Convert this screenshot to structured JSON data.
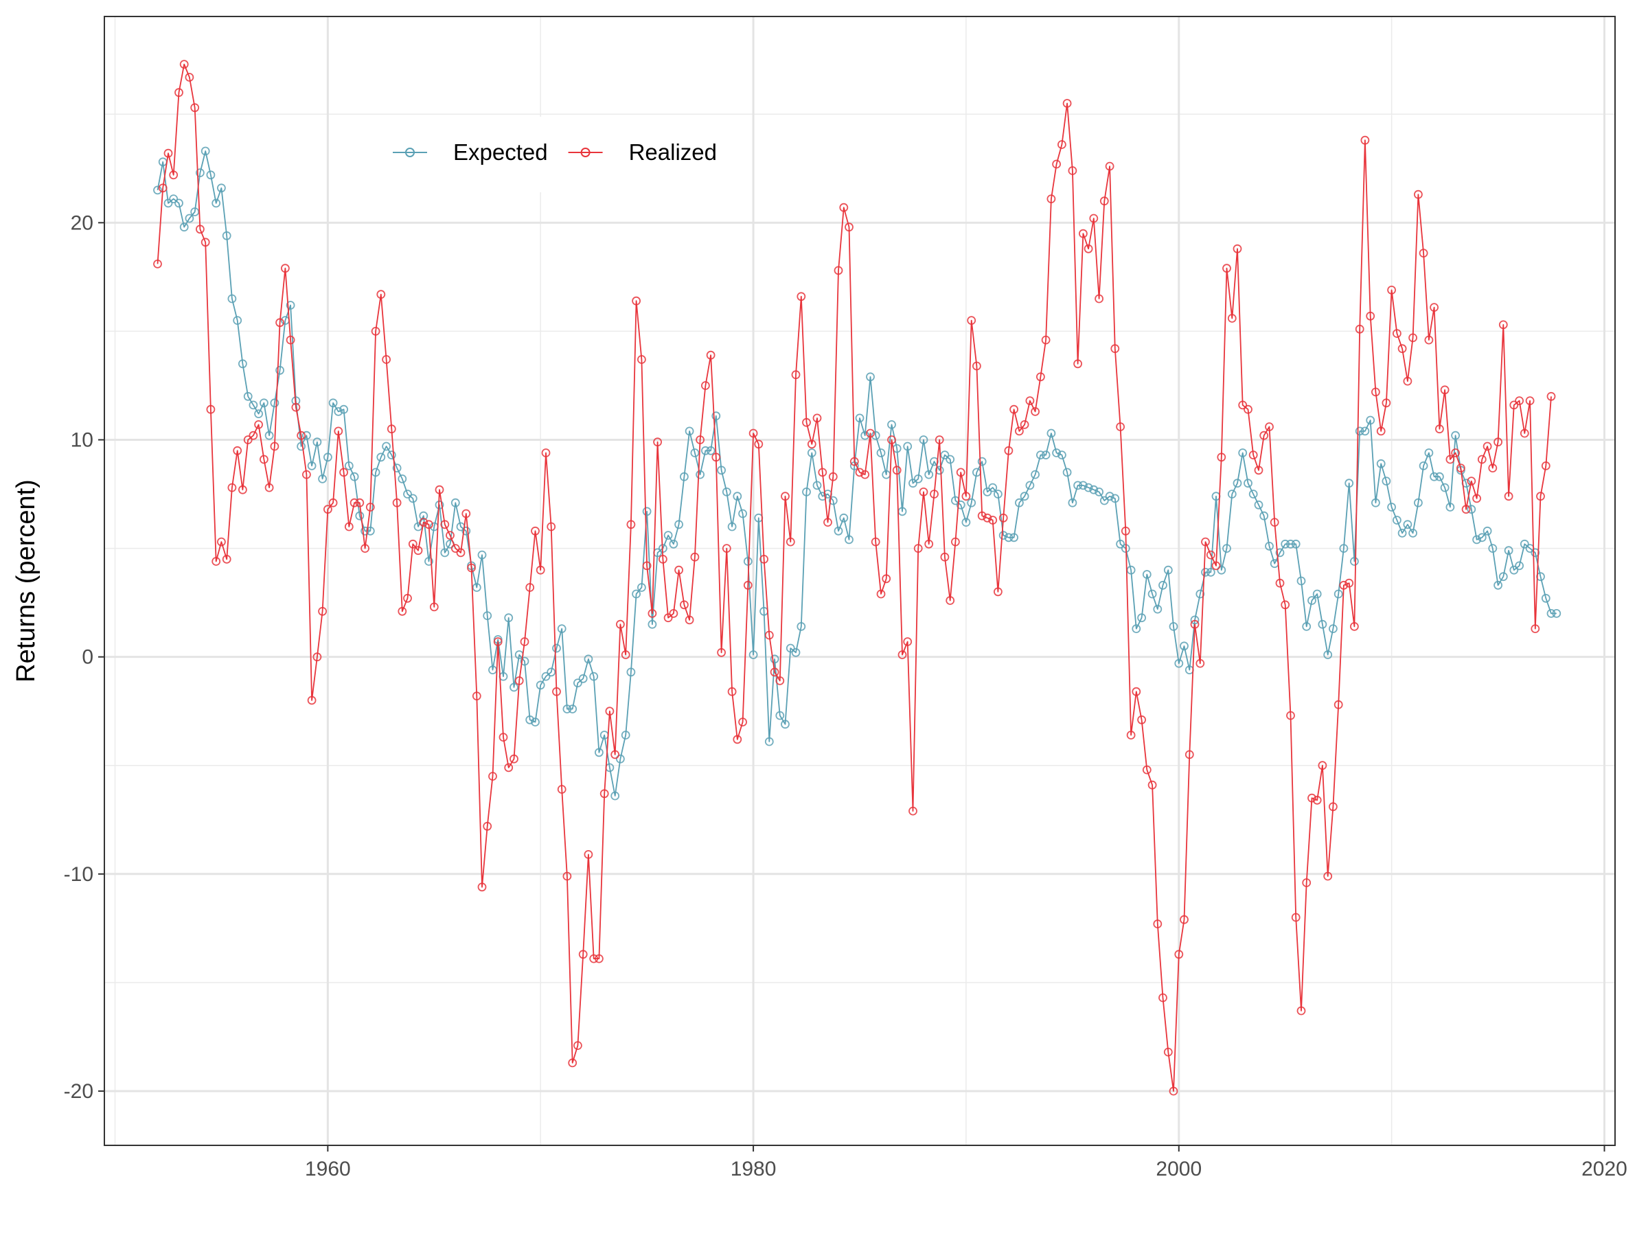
{
  "chart_data": {
    "type": "line",
    "title": "",
    "xlabel": "",
    "ylabel": "Returns (percent)",
    "xlim": [
      1949.5,
      2020.5
    ],
    "ylim": [
      -22.5,
      29.5
    ],
    "x_ticks": [
      1960,
      1980,
      2000,
      2020
    ],
    "y_ticks": [
      -20,
      -10,
      0,
      10,
      20
    ],
    "grid": true,
    "legend_position": "top-left",
    "x_start": 1952.0,
    "x_step": 0.25,
    "series": [
      {
        "name": "Expected",
        "color": "#5aa0b4",
        "marker": "open-circle",
        "values": [
          21.5,
          22.8,
          20.9,
          21.1,
          20.9,
          19.8,
          20.2,
          20.5,
          22.3,
          23.3,
          22.2,
          20.9,
          21.6,
          19.4,
          16.5,
          15.5,
          13.5,
          12.0,
          11.6,
          11.2,
          11.7,
          10.2,
          11.7,
          13.2,
          15.5,
          16.2,
          11.8,
          9.7,
          10.2,
          8.8,
          9.9,
          8.2,
          9.2,
          11.7,
          11.3,
          11.4,
          8.8,
          8.3,
          6.5,
          5.8,
          5.8,
          8.5,
          9.2,
          9.7,
          9.3,
          8.7,
          8.2,
          7.5,
          7.3,
          6.0,
          6.5,
          4.4,
          6.0,
          7.0,
          4.8,
          5.2,
          7.1,
          6.0,
          5.8,
          4.2,
          3.2,
          4.7,
          1.9,
          -0.6,
          0.8,
          -0.9,
          1.8,
          -1.4,
          0.1,
          -0.2,
          -2.9,
          -3.0,
          -1.3,
          -0.9,
          -0.7,
          0.4,
          1.3,
          -2.4,
          -2.4,
          -1.2,
          -1.0,
          -0.1,
          -0.9,
          -4.4,
          -3.6,
          -5.1,
          -6.4,
          -4.7,
          -3.6,
          -0.7,
          2.9,
          3.2,
          6.7,
          1.5,
          4.8,
          5.0,
          5.6,
          5.2,
          6.1,
          8.3,
          10.4,
          9.4,
          8.4,
          9.5,
          9.5,
          11.1,
          8.6,
          7.6,
          6.0,
          7.4,
          6.6,
          4.4,
          0.1,
          6.4,
          2.1,
          -3.9,
          -0.1,
          -2.7,
          -3.1,
          0.4,
          0.2,
          1.4,
          7.6,
          9.4,
          7.9,
          7.4,
          7.5,
          7.2,
          5.8,
          6.4,
          5.4,
          8.8,
          11.0,
          10.2,
          12.9,
          10.2,
          9.4,
          8.4,
          10.7,
          9.6,
          6.7,
          9.7,
          8.0,
          8.2,
          10.0,
          8.4,
          9.0,
          8.6,
          9.3,
          9.1,
          7.2,
          7.0,
          6.2,
          7.1,
          8.5,
          9.0,
          7.6,
          7.8,
          7.5,
          5.6,
          5.5,
          5.5,
          7.1,
          7.4,
          7.9,
          8.4,
          9.3,
          9.3,
          10.3,
          9.4,
          9.3,
          8.5,
          7.1,
          7.9,
          7.9,
          7.8,
          7.7,
          7.6,
          7.2,
          7.4,
          7.3,
          5.2,
          5.0,
          4.0,
          1.3,
          1.8,
          3.8,
          2.9,
          2.2,
          3.3,
          4.0,
          1.4,
          -0.3,
          0.5,
          -0.6,
          1.7,
          2.9,
          3.9,
          3.9,
          7.4,
          4.0,
          5.0,
          7.5,
          8.0,
          9.4,
          8.0,
          7.5,
          7.0,
          6.5,
          5.1,
          4.3,
          4.8,
          5.2,
          5.2,
          5.2,
          3.5,
          1.4,
          2.6,
          2.9,
          1.5,
          0.1,
          1.3,
          2.9,
          5.0,
          8.0,
          4.4,
          10.4,
          10.4,
          10.9,
          7.1,
          8.9,
          8.1,
          6.9,
          6.3,
          5.7,
          6.1,
          5.7,
          7.1,
          8.8,
          9.4,
          8.3,
          8.3,
          7.8,
          6.9,
          10.2,
          8.6,
          8.0,
          6.8,
          5.4,
          5.5,
          5.8,
          5.0,
          3.3,
          3.7,
          4.9,
          4.0,
          4.2,
          5.2,
          5.0,
          4.8,
          3.7,
          2.7,
          2.0,
          2.0
        ]
      },
      {
        "name": "Realized",
        "color": "#e8343b",
        "marker": "open-circle",
        "values": [
          18.1,
          21.6,
          23.2,
          22.2,
          26.0,
          27.3,
          26.7,
          25.3,
          19.7,
          19.1,
          11.4,
          4.4,
          5.3,
          4.5,
          7.8,
          9.5,
          7.7,
          10.0,
          10.2,
          10.7,
          9.1,
          7.8,
          9.7,
          15.4,
          17.9,
          14.6,
          11.5,
          10.2,
          8.4,
          -2.0,
          0.0,
          2.1,
          6.8,
          7.1,
          10.4,
          8.5,
          6.0,
          7.1,
          7.1,
          5.0,
          6.9,
          15.0,
          16.7,
          13.7,
          10.5,
          7.1,
          2.1,
          2.7,
          5.2,
          4.9,
          6.2,
          6.1,
          2.3,
          7.7,
          6.1,
          5.6,
          5.0,
          4.8,
          6.6,
          4.1,
          -1.8,
          -10.6,
          -7.8,
          -5.5,
          0.7,
          -3.7,
          -5.1,
          -4.7,
          -1.1,
          0.7,
          3.2,
          5.8,
          4.0,
          9.4,
          6.0,
          -1.6,
          -6.1,
          -10.1,
          -18.7,
          -17.9,
          -13.7,
          -9.1,
          -13.9,
          -13.9,
          -6.3,
          -2.5,
          -4.5,
          1.5,
          0.1,
          6.1,
          16.4,
          13.7,
          4.2,
          2.0,
          9.9,
          4.5,
          1.8,
          2.0,
          4.0,
          2.4,
          1.7,
          4.6,
          10.0,
          12.5,
          13.9,
          9.2,
          0.2,
          5.0,
          -1.6,
          -3.8,
          -3.0,
          3.3,
          10.3,
          9.8,
          4.5,
          1.0,
          -0.7,
          -1.1,
          7.4,
          5.3,
          13.0,
          16.6,
          10.8,
          9.8,
          11.0,
          8.5,
          6.2,
          8.3,
          17.8,
          20.7,
          19.8,
          9.0,
          8.5,
          8.4,
          10.3,
          5.3,
          2.9,
          3.6,
          10.0,
          8.6,
          0.1,
          0.7,
          -7.1,
          5.0,
          7.6,
          5.2,
          7.5,
          10.0,
          4.6,
          2.6,
          5.3,
          8.5,
          7.4,
          15.5,
          13.4,
          6.5,
          6.4,
          6.3,
          3.0,
          6.4,
          9.5,
          11.4,
          10.4,
          10.7,
          11.8,
          11.3,
          12.9,
          14.6,
          21.1,
          22.7,
          23.6,
          25.5,
          22.4,
          13.5,
          19.5,
          18.8,
          20.2,
          16.5,
          21.0,
          22.6,
          14.2,
          10.6,
          5.8,
          -3.6,
          -1.6,
          -2.9,
          -5.2,
          -5.9,
          -12.3,
          -15.7,
          -18.2,
          -20.0,
          -13.7,
          -12.1,
          -4.5,
          1.5,
          -0.3,
          5.3,
          4.7,
          4.2,
          9.2,
          17.9,
          15.6,
          18.8,
          11.6,
          11.4,
          9.3,
          8.6,
          10.2,
          10.6,
          6.2,
          3.4,
          2.4,
          -2.7,
          -12.0,
          -16.3,
          -10.4,
          -6.5,
          -6.6,
          -5.0,
          -10.1,
          -6.9,
          -2.2,
          3.3,
          3.4,
          1.4,
          15.1,
          23.8,
          15.7,
          12.2,
          10.4,
          11.7,
          16.9,
          14.9,
          14.2,
          12.7,
          14.7,
          21.3,
          18.6,
          14.6,
          16.1,
          10.5,
          12.3,
          9.1,
          9.4,
          8.7,
          6.8,
          8.1,
          7.3,
          9.1,
          9.7,
          8.7,
          9.9,
          15.3,
          7.4,
          11.6,
          11.8,
          10.3,
          11.8,
          1.3,
          7.4,
          8.8,
          12.0
        ]
      }
    ]
  }
}
